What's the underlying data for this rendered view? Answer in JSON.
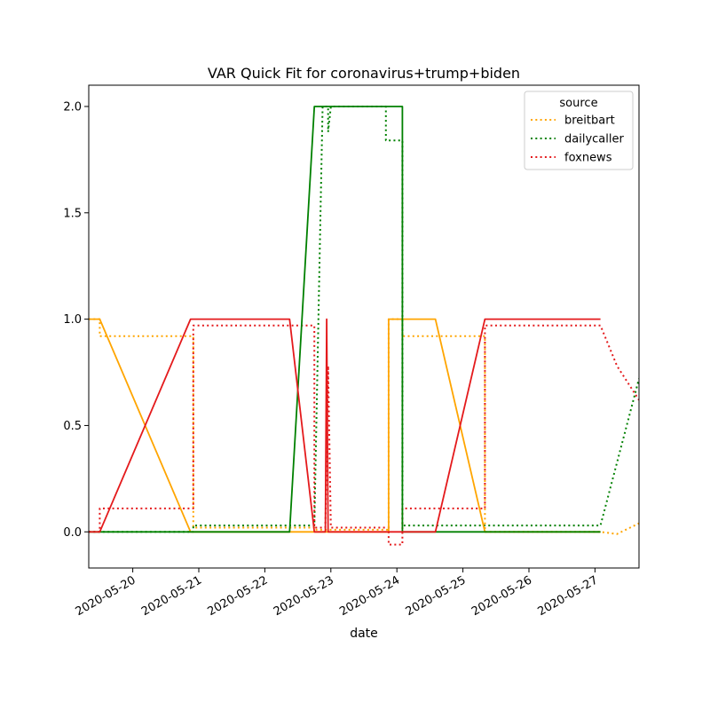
{
  "chart_data": {
    "type": "line",
    "title": "VAR Quick Fit for coronavirus+trump+biden",
    "xlabel": "date",
    "ylabel": "",
    "x_range": [
      "2020-05-19 08:00",
      "2020-05-27 16:00"
    ],
    "ylim": [
      -0.17,
      2.1
    ],
    "yticks": [
      0.0,
      0.5,
      1.0,
      1.5,
      2.0
    ],
    "ytick_labels": [
      "0.0",
      "0.5",
      "1.0",
      "1.5",
      "2.0"
    ],
    "xticks": [
      "2020-05-20",
      "2020-05-21",
      "2020-05-22",
      "2020-05-23",
      "2020-05-24",
      "2020-05-25",
      "2020-05-26",
      "2020-05-27"
    ],
    "grid": false,
    "legend": {
      "title": "source",
      "placement": "top-right"
    },
    "series": [
      {
        "name": "breitbart",
        "kind": "fitted",
        "style": "dotted",
        "color": "#ffa500",
        "points": [
          [
            "2020-05-19 08:00",
            1.0
          ],
          [
            "2020-05-19 12:00",
            1.0
          ],
          [
            "2020-05-19 12:00",
            0.92
          ],
          [
            "2020-05-20 22:00",
            0.92
          ],
          [
            "2020-05-20 22:00",
            0.02
          ],
          [
            "2020-05-22 18:00",
            0.02
          ],
          [
            "2020-05-22 18:00",
            0.01
          ],
          [
            "2020-05-22 22:00",
            0.01
          ],
          [
            "2020-05-23 21:00",
            0.01
          ],
          [
            "2020-05-23 21:00",
            1.0
          ],
          [
            "2020-05-24 02:00",
            1.0
          ],
          [
            "2020-05-24 02:00",
            0.92
          ],
          [
            "2020-05-25 08:00",
            0.92
          ],
          [
            "2020-05-25 08:00",
            0.0
          ],
          [
            "2020-05-27 02:00",
            0.0
          ],
          [
            "2020-05-27 08:00",
            -0.01
          ],
          [
            "2020-05-27 16:00",
            0.04
          ]
        ]
      },
      {
        "name": "dailycaller",
        "kind": "fitted",
        "style": "dotted",
        "color": "#008000",
        "points": [
          [
            "2020-05-19 08:00",
            0.0
          ],
          [
            "2020-05-20 22:00",
            0.0
          ],
          [
            "2020-05-20 22:00",
            0.03
          ],
          [
            "2020-05-22 18:00",
            0.03
          ],
          [
            "2020-05-22 18:00",
            0.03
          ],
          [
            "2020-05-22 21:00",
            2.0
          ],
          [
            "2020-05-22 23:00",
            2.0
          ],
          [
            "2020-05-22 23:00",
            1.88
          ],
          [
            "2020-05-23 00:00",
            2.0
          ],
          [
            "2020-05-23 20:00",
            2.0
          ],
          [
            "2020-05-23 20:00",
            1.84
          ],
          [
            "2020-05-24 02:00",
            1.84
          ],
          [
            "2020-05-24 02:00",
            0.03
          ],
          [
            "2020-05-25 08:00",
            0.03
          ],
          [
            "2020-05-25 08:00",
            0.03
          ],
          [
            "2020-05-27 02:00",
            0.03
          ],
          [
            "2020-05-27 16:00",
            0.72
          ]
        ]
      },
      {
        "name": "foxnews",
        "kind": "fitted",
        "style": "dotted",
        "color": "#e41a1c",
        "points": [
          [
            "2020-05-19 08:00",
            0.0
          ],
          [
            "2020-05-19 12:00",
            0.0
          ],
          [
            "2020-05-19 12:00",
            0.11
          ],
          [
            "2020-05-20 22:00",
            0.11
          ],
          [
            "2020-05-20 22:00",
            0.97
          ],
          [
            "2020-05-22 18:00",
            0.97
          ],
          [
            "2020-05-22 18:00",
            0.02
          ],
          [
            "2020-05-22 22:00",
            0.02
          ],
          [
            "2020-05-22 23:00",
            0.78
          ],
          [
            "2020-05-23 00:00",
            0.02
          ],
          [
            "2020-05-23 21:00",
            0.02
          ],
          [
            "2020-05-23 21:00",
            -0.06
          ],
          [
            "2020-05-24 02:00",
            -0.06
          ],
          [
            "2020-05-24 02:00",
            0.11
          ],
          [
            "2020-05-25 08:00",
            0.11
          ],
          [
            "2020-05-25 08:00",
            0.97
          ],
          [
            "2020-05-27 02:00",
            0.97
          ],
          [
            "2020-05-27 08:00",
            0.78
          ],
          [
            "2020-05-27 16:00",
            0.62
          ]
        ]
      },
      {
        "name": "breitbart",
        "kind": "observed",
        "style": "solid",
        "color": "#ffa500",
        "points": [
          [
            "2020-05-19 08:00",
            1.0
          ],
          [
            "2020-05-19 12:00",
            1.0
          ],
          [
            "2020-05-20 21:00",
            0.0
          ],
          [
            "2020-05-23 21:00",
            0.0
          ],
          [
            "2020-05-23 21:00",
            1.0
          ],
          [
            "2020-05-24 14:00",
            1.0
          ],
          [
            "2020-05-25 08:00",
            0.0
          ],
          [
            "2020-05-27 02:00",
            0.0
          ]
        ]
      },
      {
        "name": "dailycaller",
        "kind": "observed",
        "style": "solid",
        "color": "#008000",
        "points": [
          [
            "2020-05-19 08:00",
            0.0
          ],
          [
            "2020-05-22 09:00",
            0.0
          ],
          [
            "2020-05-22 18:00",
            2.0
          ],
          [
            "2020-05-24 02:00",
            2.0
          ],
          [
            "2020-05-24 02:00",
            0.0
          ],
          [
            "2020-05-27 02:00",
            0.0
          ]
        ]
      },
      {
        "name": "foxnews",
        "kind": "observed",
        "style": "solid",
        "color": "#e41a1c",
        "points": [
          [
            "2020-05-19 08:00",
            0.0
          ],
          [
            "2020-05-19 12:00",
            0.0
          ],
          [
            "2020-05-20 21:00",
            1.0
          ],
          [
            "2020-05-22 09:00",
            1.0
          ],
          [
            "2020-05-22 18:00",
            0.0
          ],
          [
            "2020-05-22 22:00",
            0.0
          ],
          [
            "2020-05-22 22:30",
            1.0
          ],
          [
            "2020-05-22 23:00",
            0.0
          ],
          [
            "2020-05-24 14:00",
            0.0
          ],
          [
            "2020-05-25 08:00",
            1.0
          ],
          [
            "2020-05-27 02:00",
            1.0
          ]
        ]
      }
    ]
  }
}
